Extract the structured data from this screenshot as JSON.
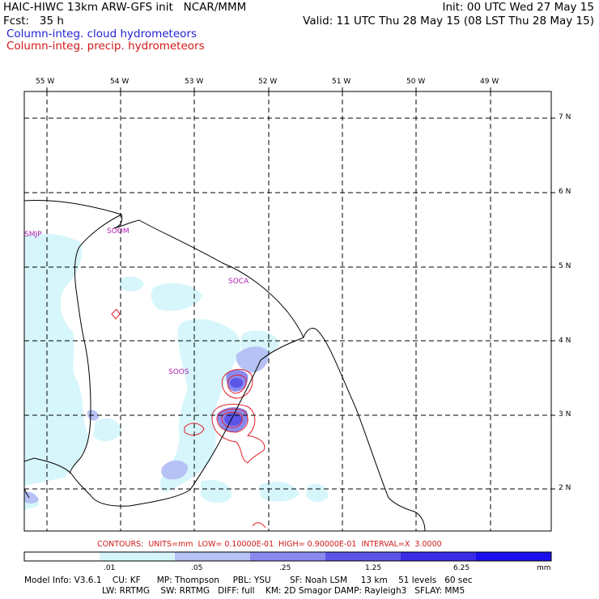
{
  "header": {
    "left_line1": "HAIC-HIWC 13km ARW-GFS init   NCAR/MMM",
    "left_line2": "Fcst:   35 h",
    "right_line1": "Init: 00 UTC Wed 27 May 15",
    "right_line2": "Valid: 11 UTC Thu 28 May 15 (08 LST Thu 28 May 15)",
    "field1": "Column-integ. cloud hydrometeors",
    "field2": "Column-integ. precip. hydrometeors"
  },
  "axes": {
    "lon_labels": [
      "55 W",
      "54 W",
      "53 W",
      "52 W",
      "51 W",
      "50 W",
      "49 W"
    ],
    "lat_labels": [
      "7 N",
      "6 N",
      "5 N",
      "4 N",
      "3 N",
      "2 N"
    ]
  },
  "stations": [
    "SMJP",
    "SOOM",
    "SOCA",
    "SOOS"
  ],
  "contours_text": "CONTOURS:  UNITS=mm  LOW= 0.10000E-01  HIGH= 0.90000E-01  INTERVAL=X  3.0000",
  "colorbar": {
    "labels": [
      ".01",
      ".05",
      ".25",
      "1.25",
      "6.25"
    ],
    "units": "mm",
    "colors": [
      "#ffffff",
      "#d6f6fb",
      "#b6c2f5",
      "#8a89f0",
      "#5b55e8",
      "#3a2ce6",
      "#1a10ee"
    ]
  },
  "model_info": {
    "line1": "Model Info: V3.6.1    CU: KF      MP: Thompson     PBL: YSU       SF: Noah LSM     13 km    51 levels   60 sec",
    "line2": "LW: RRTMG    SW: RRTMG   DIFF: full    KM: 2D Smagor DAMP: Rayleigh3   SFLAY: MM5"
  }
}
